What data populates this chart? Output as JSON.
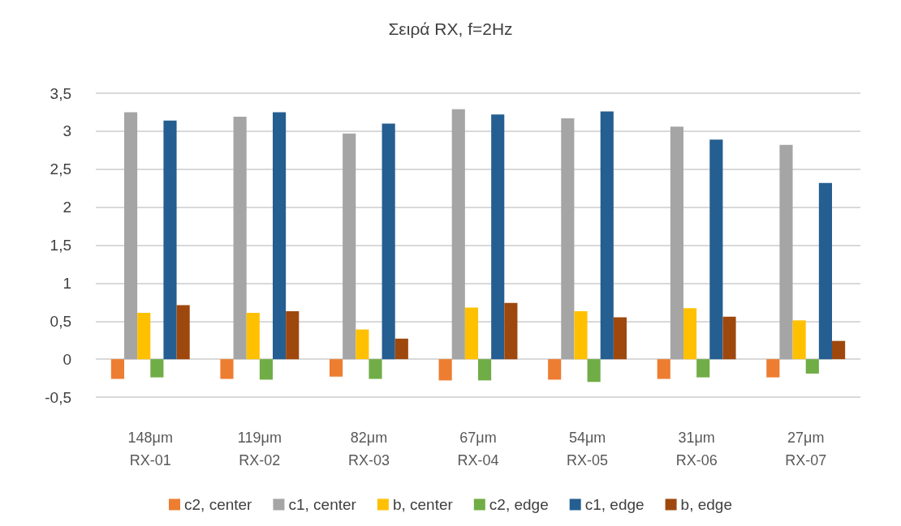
{
  "chart_data": {
    "type": "bar",
    "title": "Σειρά RX, f=2Hz",
    "categories": [
      "148μm\nRX-01",
      "119μm\nRX-02",
      "82μm\nRX-03",
      "67μm\nRX-04",
      "54μm\nRX-05",
      "31μm\nRX-06",
      "27μm\nRX-07"
    ],
    "series": [
      {
        "name": "c2, center",
        "color": "#ed7d31",
        "values": [
          -0.26,
          -0.26,
          -0.23,
          -0.28,
          -0.27,
          -0.26,
          -0.24
        ]
      },
      {
        "name": "c1, center",
        "color": "#a5a5a5",
        "values": [
          3.25,
          3.19,
          2.97,
          3.29,
          3.17,
          3.06,
          2.82
        ]
      },
      {
        "name": "b, center",
        "color": "#ffc000",
        "values": [
          0.61,
          0.61,
          0.39,
          0.68,
          0.63,
          0.67,
          0.51
        ]
      },
      {
        "name": "c2, edge",
        "color": "#70ad47",
        "values": [
          -0.24,
          -0.27,
          -0.26,
          -0.28,
          -0.3,
          -0.24,
          -0.19
        ]
      },
      {
        "name": "c1, edge",
        "color": "#255e91",
        "values": [
          3.14,
          3.25,
          3.1,
          3.22,
          3.26,
          2.89,
          2.32
        ]
      },
      {
        "name": "b, edge",
        "color": "#9e480e",
        "values": [
          0.71,
          0.63,
          0.27,
          0.74,
          0.55,
          0.56,
          0.24
        ]
      }
    ],
    "ylim": [
      -0.5,
      3.5
    ],
    "yticks": [
      {
        "value": -0.5,
        "label": "-0,5"
      },
      0,
      {
        "value": 0.5,
        "label": "0,5"
      },
      1,
      {
        "value": 1.5,
        "label": "1,5"
      },
      2,
      {
        "value": 2.5,
        "label": "2,5"
      },
      3,
      {
        "value": 3.5,
        "label": "3,5"
      }
    ],
    "grid": "y",
    "legend": "bottom"
  }
}
